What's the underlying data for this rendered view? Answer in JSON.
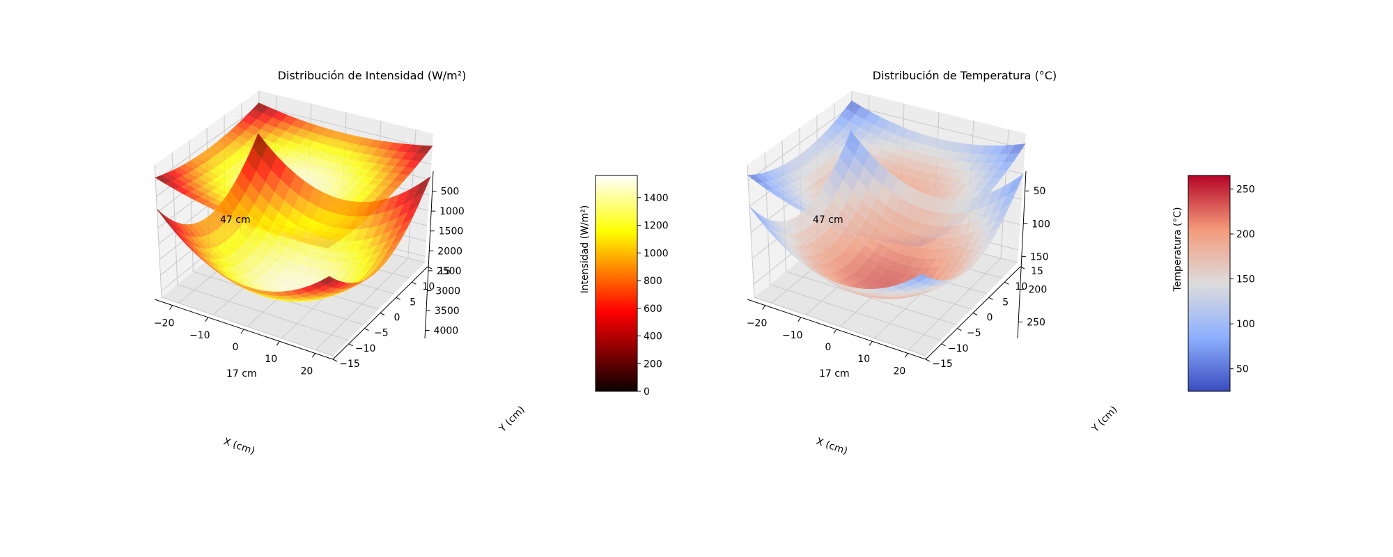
{
  "chart_data": [
    {
      "type": "surface3d",
      "title": "Distribución de Intensidad (W/m²)",
      "xlabel": "X (cm)",
      "ylabel": "Y (cm)",
      "zlabel": "",
      "x_ticks": [
        "−20",
        "−10",
        "0",
        "10",
        "20"
      ],
      "y_ticks": [
        "−15",
        "−10",
        "−5",
        "0",
        "5",
        "10",
        "15"
      ],
      "z_ticks": [
        "500",
        "1000",
        "1500",
        "2000",
        "2500",
        "3000",
        "3500",
        "4000"
      ],
      "xlim": [
        -25,
        25
      ],
      "ylim": [
        -15,
        15
      ],
      "zlim": [
        0,
        4200
      ],
      "z_axis_inverted": true,
      "annotations": [
        "47 cm",
        "17 cm"
      ],
      "surfaces": [
        {
          "label": "47 cm",
          "z_center": 1000,
          "z_edge": 400,
          "min_value": 200,
          "max_value": 1500
        },
        {
          "label": "17 cm",
          "z_center": 4300,
          "z_edge": 1400,
          "min_value": 200,
          "max_value": 1500
        }
      ],
      "colormap": "hot",
      "colorbar": {
        "label": "Intensidad (W/m²)",
        "ticks": [
          "0",
          "200",
          "400",
          "600",
          "800",
          "1000",
          "1200",
          "1400"
        ],
        "range": [
          0,
          1560
        ]
      }
    },
    {
      "type": "surface3d",
      "title": "Distribución de Temperatura (°C)",
      "xlabel": "X (cm)",
      "ylabel": "Y (cm)",
      "zlabel": "",
      "x_ticks": [
        "−20",
        "−10",
        "0",
        "10",
        "20"
      ],
      "y_ticks": [
        "−15",
        "−10",
        "−5",
        "0",
        "5",
        "10",
        "15"
      ],
      "z_ticks": [
        "50",
        "100",
        "150",
        "200",
        "250"
      ],
      "xlim": [
        -25,
        25
      ],
      "ylim": [
        -15,
        15
      ],
      "zlim": [
        20,
        275
      ],
      "z_axis_inverted": true,
      "annotations": [
        "47 cm",
        "17 cm"
      ],
      "surfaces": [
        {
          "label": "47 cm",
          "z_center": 105,
          "z_edge": 40,
          "min_value": 40,
          "max_value": 200
        },
        {
          "label": "17 cm",
          "z_center": 275,
          "z_edge": 100,
          "min_value": 60,
          "max_value": 230
        }
      ],
      "colormap": "coolwarm",
      "colorbar": {
        "label": "Temperatura (°C)",
        "ticks": [
          "50",
          "100",
          "150",
          "200",
          "250"
        ],
        "range": [
          25,
          265
        ]
      }
    }
  ]
}
